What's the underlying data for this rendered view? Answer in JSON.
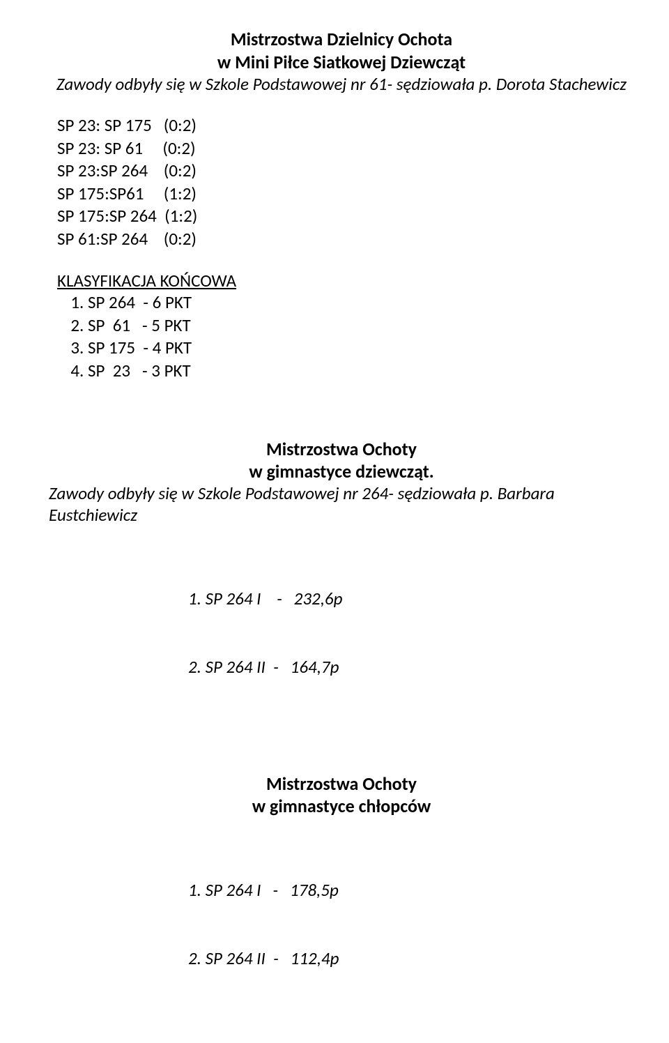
{
  "s1": {
    "title1": "Mistrzostwa Dzielnicy Ochota",
    "title2": "w Mini Piłce Siatkowej Dziewcząt",
    "subtitle": "Zawody odbyły się w Szkole Podstawowej nr 61- sędziowała  p. Dorota Stachewicz",
    "rows": [
      "SP 23: SP 175   (0:2)",
      "SP 23: SP 61     (0:2)",
      "SP 23:SP 264    (0:2)",
      "SP 175:SP61     (1:2)",
      "SP 175:SP 264  (1:2)",
      "SP 61:SP 264    (0:2)"
    ],
    "klasHeader": "KLASYFIKACJA KOŃCOWA",
    "klas": [
      "SP 264  - 6 PKT",
      "SP  61   - 5 PKT",
      "SP 175  - 4 PKT",
      "SP  23   - 3 PKT"
    ]
  },
  "s2": {
    "title1": "Mistrzostwa Ochoty",
    "title2": "w gimnastyce dziewcząt.",
    "subtitle": "Zawody odbyły się w Szkole Podstawowej nr 264- sędziowała  p. Barbara Eustchiewicz",
    "r1": "1. SP 264 I    -   232,6p",
    "r2": "2. SP 264 II  -   164,7p"
  },
  "s3": {
    "title1": "Mistrzostwa Ochoty",
    "title2": "w gimnastyce chłopców",
    "r1": "1. SP 264 I   -   178,5p",
    "r2": "2. SP 264 II  -   112,4p"
  }
}
